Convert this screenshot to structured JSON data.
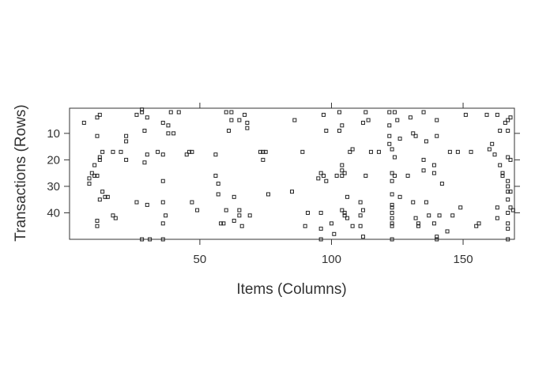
{
  "chart_data": {
    "type": "scatter",
    "title": "",
    "xlabel": "Items (Columns)",
    "ylabel": "Transactions (Rows)",
    "xlim": [
      0.5,
      169.5
    ],
    "ylim": [
      50,
      0.5
    ],
    "y_reversed": true,
    "x_ticks": [
      50,
      100,
      150
    ],
    "y_ticks": [
      10,
      20,
      30,
      40
    ],
    "x_tick_labels": [
      "50",
      "100",
      "150"
    ],
    "y_tick_labels": [
      "10",
      "20",
      "30",
      "40"
    ],
    "grid": false,
    "legend": "none",
    "marker": "open-square",
    "points": [
      [
        6,
        6
      ],
      [
        11,
        4
      ],
      [
        12,
        3
      ],
      [
        11,
        11
      ],
      [
        12,
        19
      ],
      [
        13,
        17
      ],
      [
        12,
        20
      ],
      [
        10,
        22
      ],
      [
        9,
        25
      ],
      [
        10,
        26
      ],
      [
        8,
        27
      ],
      [
        8,
        29
      ],
      [
        11,
        26
      ],
      [
        12,
        35
      ],
      [
        11,
        43
      ],
      [
        11,
        45
      ],
      [
        13,
        32
      ],
      [
        14,
        34
      ],
      [
        15,
        34
      ],
      [
        17,
        41
      ],
      [
        18,
        42
      ],
      [
        17,
        17
      ],
      [
        20,
        17
      ],
      [
        22,
        13
      ],
      [
        22,
        11
      ],
      [
        22,
        20
      ],
      [
        26,
        3
      ],
      [
        28,
        2
      ],
      [
        28,
        1
      ],
      [
        26,
        36
      ],
      [
        29,
        9
      ],
      [
        29,
        21
      ],
      [
        30,
        18
      ],
      [
        30,
        4
      ],
      [
        30,
        37
      ],
      [
        31,
        50
      ],
      [
        28,
        50
      ],
      [
        34,
        17
      ],
      [
        36,
        28
      ],
      [
        36,
        6
      ],
      [
        36,
        18
      ],
      [
        38,
        7
      ],
      [
        38,
        10
      ],
      [
        39,
        2
      ],
      [
        40,
        10
      ],
      [
        36,
        36
      ],
      [
        37,
        41
      ],
      [
        36,
        44
      ],
      [
        36,
        50
      ],
      [
        42,
        2
      ],
      [
        45,
        18
      ],
      [
        46,
        17
      ],
      [
        47,
        17
      ],
      [
        47,
        36
      ],
      [
        49,
        39
      ],
      [
        56,
        26
      ],
      [
        56,
        18
      ],
      [
        57,
        29
      ],
      [
        57,
        33
      ],
      [
        58,
        44
      ],
      [
        59,
        44
      ],
      [
        60,
        2
      ],
      [
        62,
        2
      ],
      [
        60,
        39
      ],
      [
        61,
        9
      ],
      [
        62,
        5
      ],
      [
        63,
        34
      ],
      [
        63,
        43
      ],
      [
        65,
        5
      ],
      [
        65,
        39
      ],
      [
        65,
        41
      ],
      [
        66,
        45
      ],
      [
        67,
        3
      ],
      [
        68,
        6
      ],
      [
        68,
        8
      ],
      [
        69,
        41
      ],
      [
        74,
        17
      ],
      [
        73,
        17
      ],
      [
        75,
        17
      ],
      [
        74,
        20
      ],
      [
        76,
        33
      ],
      [
        85,
        32
      ],
      [
        86,
        5
      ],
      [
        89,
        17
      ],
      [
        90,
        45
      ],
      [
        91,
        40
      ],
      [
        95,
        27
      ],
      [
        96,
        25
      ],
      [
        96,
        40
      ],
      [
        96,
        46
      ],
      [
        96,
        50
      ],
      [
        97,
        3
      ],
      [
        98,
        9
      ],
      [
        97,
        26
      ],
      [
        98,
        28
      ],
      [
        100,
        44
      ],
      [
        101,
        48
      ],
      [
        102,
        26
      ],
      [
        103,
        2
      ],
      [
        104,
        7
      ],
      [
        103,
        9
      ],
      [
        104,
        22
      ],
      [
        104,
        24
      ],
      [
        104,
        26
      ],
      [
        105,
        25
      ],
      [
        104,
        39
      ],
      [
        105,
        40
      ],
      [
        105,
        41
      ],
      [
        106,
        42
      ],
      [
        106,
        34
      ],
      [
        107,
        17
      ],
      [
        108,
        16
      ],
      [
        108,
        45
      ],
      [
        111,
        36
      ],
      [
        111,
        41
      ],
      [
        111,
        45
      ],
      [
        112,
        39
      ],
      [
        112,
        49
      ],
      [
        113,
        2
      ],
      [
        112,
        6
      ],
      [
        113,
        26
      ],
      [
        114,
        5
      ],
      [
        115,
        17
      ],
      [
        118,
        17
      ],
      [
        122,
        2
      ],
      [
        122,
        7
      ],
      [
        122,
        11
      ],
      [
        122,
        14
      ],
      [
        123,
        16
      ],
      [
        123,
        25
      ],
      [
        123,
        28
      ],
      [
        123,
        33
      ],
      [
        123,
        37
      ],
      [
        123,
        38
      ],
      [
        123,
        40
      ],
      [
        123,
        42
      ],
      [
        123,
        44
      ],
      [
        123,
        45
      ],
      [
        123,
        50
      ],
      [
        124,
        2
      ],
      [
        124,
        19
      ],
      [
        124,
        26
      ],
      [
        125,
        5
      ],
      [
        126,
        12
      ],
      [
        126,
        34
      ],
      [
        129,
        26
      ],
      [
        130,
        4
      ],
      [
        131,
        10
      ],
      [
        131,
        36
      ],
      [
        132,
        11
      ],
      [
        132,
        42
      ],
      [
        133,
        44
      ],
      [
        133,
        45
      ],
      [
        135,
        2
      ],
      [
        135,
        20
      ],
      [
        135,
        24
      ],
      [
        136,
        13
      ],
      [
        136,
        36
      ],
      [
        137,
        41
      ],
      [
        139,
        22
      ],
      [
        139,
        25
      ],
      [
        140,
        5
      ],
      [
        140,
        11
      ],
      [
        139,
        44
      ],
      [
        140,
        49
      ],
      [
        140,
        50
      ],
      [
        141,
        41
      ],
      [
        142,
        29
      ],
      [
        144,
        47
      ],
      [
        145,
        17
      ],
      [
        146,
        41
      ],
      [
        148,
        17
      ],
      [
        149,
        38
      ],
      [
        151,
        3
      ],
      [
        153,
        17
      ],
      [
        155,
        45
      ],
      [
        156,
        44
      ],
      [
        159,
        3
      ],
      [
        160,
        16
      ],
      [
        161,
        14
      ],
      [
        162,
        18
      ],
      [
        163,
        3
      ],
      [
        163,
        38
      ],
      [
        163,
        42
      ],
      [
        164,
        9
      ],
      [
        164,
        22
      ],
      [
        165,
        26
      ],
      [
        166,
        6
      ],
      [
        165,
        25
      ],
      [
        167,
        5
      ],
      [
        167,
        9
      ],
      [
        167,
        19
      ],
      [
        167,
        28
      ],
      [
        167,
        30
      ],
      [
        167,
        32
      ],
      [
        167,
        35
      ],
      [
        167,
        40
      ],
      [
        167,
        44
      ],
      [
        167,
        46
      ],
      [
        167,
        50
      ],
      [
        168,
        4
      ],
      [
        168,
        20
      ],
      [
        168,
        32
      ],
      [
        168,
        38
      ],
      [
        169,
        39
      ]
    ]
  }
}
